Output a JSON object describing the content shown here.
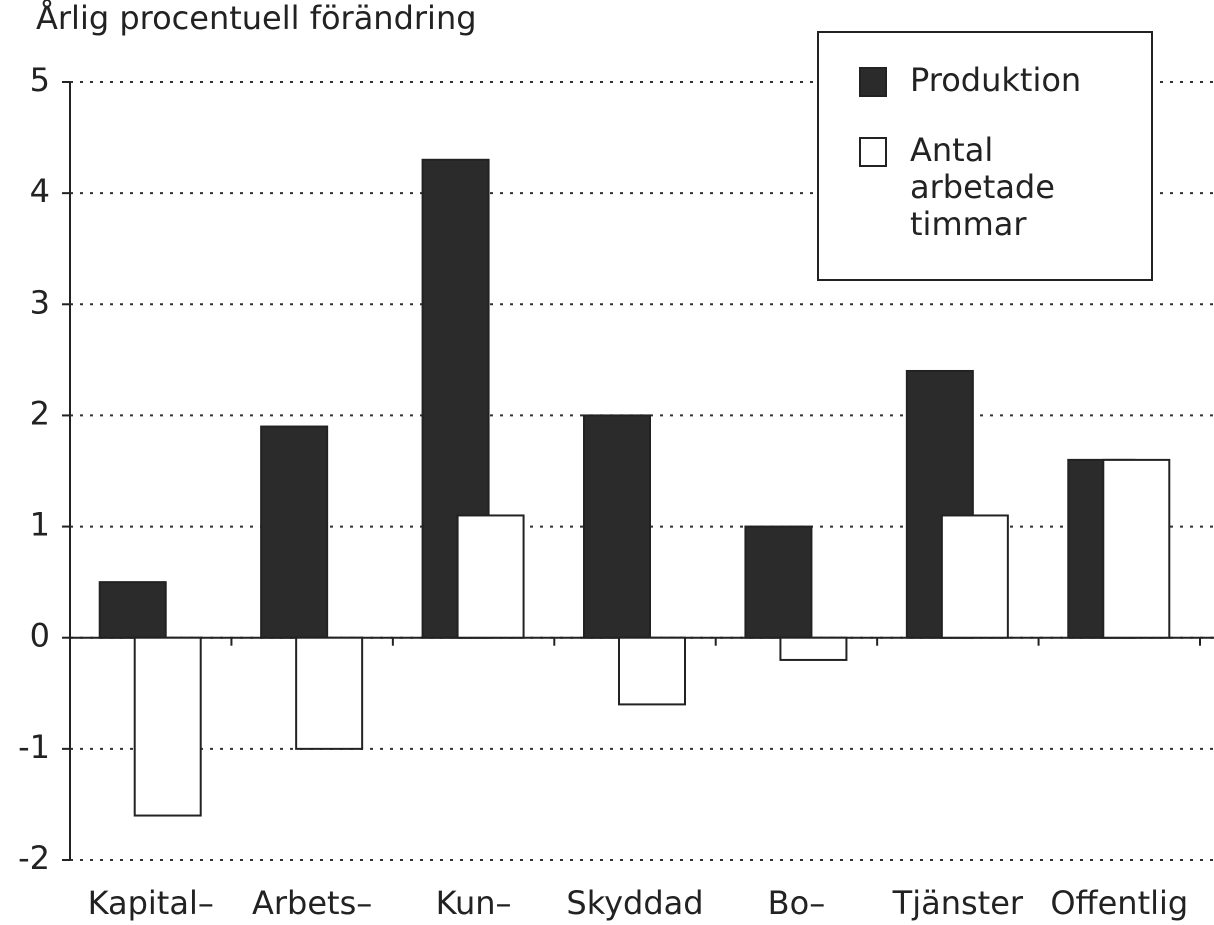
{
  "chart_data": {
    "type": "bar",
    "title": "Årlig procentuell förändring",
    "categories": [
      "Kapital–",
      "Arbets–",
      "Kun–",
      "Skyddad",
      "Bo–",
      "Tjänster",
      "Offentlig"
    ],
    "series": [
      {
        "name": "Produktion",
        "color": "#2b2b2b",
        "values": [
          0.5,
          1.9,
          4.3,
          2.0,
          1.0,
          2.4,
          1.6
        ]
      },
      {
        "name": "Antal arbetade timmar",
        "color": "#ffffff",
        "values": [
          -1.6,
          -1.0,
          1.1,
          -0.6,
          -0.2,
          1.1,
          1.6
        ]
      }
    ],
    "ylim": [
      -2,
      5
    ],
    "yticks": [
      -2,
      -1,
      0,
      1,
      2,
      3,
      4,
      5
    ],
    "grid": true,
    "legend": "top-right"
  }
}
